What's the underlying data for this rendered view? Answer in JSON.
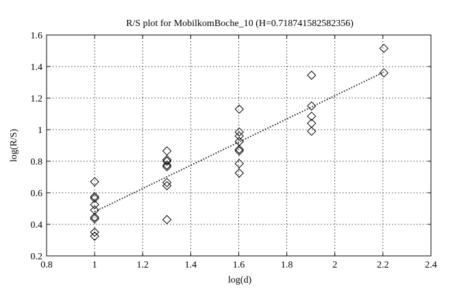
{
  "chart_data": {
    "type": "scatter",
    "title": "R/S plot for MobilkomBoche_10 (H=0.718741582582356)",
    "xlabel": "log(d)",
    "ylabel": "log(R/S)",
    "xlim": [
      0.8,
      2.4
    ],
    "ylim": [
      0.2,
      1.6
    ],
    "xticks": [
      "0.8",
      "1",
      "1.2",
      "1.4",
      "1.6",
      "1.8",
      "2",
      "2.2",
      "2.4"
    ],
    "yticks": [
      "0.2",
      "0.4",
      "0.6",
      "0.8",
      "1",
      "1.2",
      "1.4",
      "1.6"
    ],
    "grid": true,
    "colors": {
      "marker": "#000000",
      "fit_line": "#000000",
      "grid": "#000000"
    },
    "series": [
      {
        "marker": "diamond",
        "points": [
          [
            1.0,
            0.67
          ],
          [
            1.0,
            0.575
          ],
          [
            1.0,
            0.565
          ],
          [
            1.0,
            0.525
          ],
          [
            1.0,
            0.49
          ],
          [
            1.0,
            0.445
          ],
          [
            1.0,
            0.435
          ],
          [
            1.0,
            0.35
          ],
          [
            1.0,
            0.325
          ],
          [
            1.301,
            0.865
          ],
          [
            1.301,
            0.81
          ],
          [
            1.301,
            0.8
          ],
          [
            1.301,
            0.775
          ],
          [
            1.301,
            0.765
          ],
          [
            1.301,
            0.665
          ],
          [
            1.301,
            0.645
          ],
          [
            1.301,
            0.43
          ],
          [
            1.602,
            1.13
          ],
          [
            1.602,
            0.985
          ],
          [
            1.602,
            0.96
          ],
          [
            1.602,
            0.925
          ],
          [
            1.602,
            0.875
          ],
          [
            1.602,
            0.865
          ],
          [
            1.602,
            0.785
          ],
          [
            1.602,
            0.725
          ],
          [
            1.903,
            1.345
          ],
          [
            1.903,
            1.15
          ],
          [
            1.903,
            1.085
          ],
          [
            1.903,
            1.04
          ],
          [
            1.903,
            0.99
          ],
          [
            2.204,
            1.515
          ],
          [
            2.204,
            1.36
          ]
        ]
      },
      {
        "style": "dotted-line",
        "points": [
          [
            1.0,
            0.48
          ],
          [
            2.204,
            1.365
          ]
        ]
      }
    ]
  }
}
